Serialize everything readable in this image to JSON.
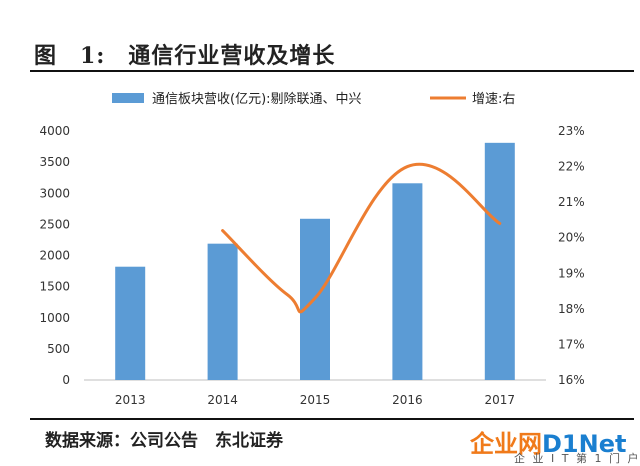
{
  "header": {
    "title": "图　1:　通信行业营收及增长"
  },
  "chart_data": {
    "type": "bar",
    "categories": [
      "2013",
      "2014",
      "2015",
      "2016",
      "2017"
    ],
    "series": [
      {
        "name": "通信板块营收(亿元):剔除联通、中兴",
        "type": "bar",
        "axis": "left",
        "values": [
          1820,
          2190,
          2590,
          3160,
          3810
        ]
      },
      {
        "name": "增速:右",
        "type": "line",
        "axis": "right",
        "smooth": true,
        "values": [
          20.2,
          18.4,
          18.3,
          22.0,
          20.4
        ]
      }
    ],
    "x_positions": [
      "2014",
      "2014.7",
      "2015",
      "2016",
      "2017"
    ],
    "left_axis": {
      "ticks": [
        "0",
        "500",
        "1000",
        "1500",
        "2000",
        "2500",
        "3000",
        "3500",
        "4000"
      ],
      "ylim": [
        0,
        4000
      ]
    },
    "right_axis": {
      "ticks": [
        "16%",
        "17%",
        "18%",
        "19%",
        "20%",
        "21%",
        "22%",
        "23%"
      ],
      "ylim": [
        16,
        23
      ]
    },
    "legend_position": "top",
    "grid": false,
    "colors": {
      "bar": "#5b9bd5",
      "line": "#ed7d31"
    }
  },
  "footer": {
    "source": "数据来源：公司公告　东北证券"
  },
  "watermark": {
    "main_left": "企业网",
    "main_right": "D1Net",
    "sub": "企 业 I T 第 1 门 户"
  }
}
